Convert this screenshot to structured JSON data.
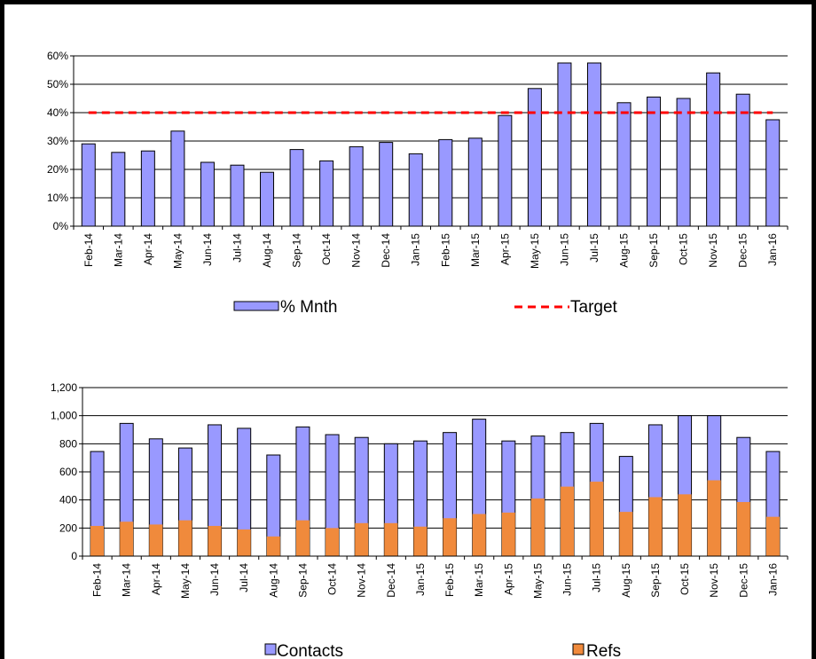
{
  "chart_data": [
    {
      "type": "bar",
      "title": "",
      "xlabel": "",
      "ylabel": "",
      "categories": [
        "Feb-14",
        "Mar-14",
        "Apr-14",
        "May-14",
        "Jun-14",
        "Jul-14",
        "Aug-14",
        "Sep-14",
        "Oct-14",
        "Nov-14",
        "Dec-14",
        "Jan-15",
        "Feb-15",
        "Mar-15",
        "Apr-15",
        "May-15",
        "Jun-15",
        "Jul-15",
        "Aug-15",
        "Sep-15",
        "Oct-15",
        "Nov-15",
        "Dec-15",
        "Jan-16"
      ],
      "yticks": [
        "0%",
        "10%",
        "20%",
        "30%",
        "40%",
        "50%",
        "60%"
      ],
      "ylim": [
        0,
        60
      ],
      "grid": true,
      "legend_position": "bottom",
      "series": [
        {
          "name": "% Mnth",
          "type": "bar",
          "color": "#9999FF",
          "values": [
            29,
            26,
            26.5,
            33.5,
            22.5,
            21.5,
            19,
            27,
            23,
            28,
            29.5,
            25.5,
            30.5,
            31,
            39,
            48.5,
            57.5,
            57.5,
            43.5,
            45.5,
            45,
            54,
            46.5,
            37.5
          ]
        },
        {
          "name": "Target",
          "type": "line",
          "style": "dashed",
          "color": "#FF0000",
          "values": [
            40,
            40,
            40,
            40,
            40,
            40,
            40,
            40,
            40,
            40,
            40,
            40,
            40,
            40,
            40,
            40,
            40,
            40,
            40,
            40,
            40,
            40,
            40,
            40
          ]
        }
      ]
    },
    {
      "type": "bar",
      "stacking": "overlay",
      "title": "",
      "xlabel": "",
      "ylabel": "",
      "categories": [
        "Feb-14",
        "Mar-14",
        "Apr-14",
        "May-14",
        "Jun-14",
        "Jul-14",
        "Aug-14",
        "Sep-14",
        "Oct-14",
        "Nov-14",
        "Dec-14",
        "Jan-15",
        "Feb-15",
        "Mar-15",
        "Apr-15",
        "May-15",
        "Jun-15",
        "Jul-15",
        "Aug-15",
        "Sep-15",
        "Oct-15",
        "Nov-15",
        "Dec-15",
        "Jan-16"
      ],
      "yticks": [
        "0",
        "200",
        "400",
        "600",
        "800",
        "1,000",
        "1,200"
      ],
      "ylim": [
        0,
        1200
      ],
      "grid": true,
      "legend_position": "bottom",
      "series": [
        {
          "name": "Contacts",
          "color": "#9999FF",
          "values": [
            745,
            945,
            835,
            770,
            935,
            910,
            720,
            920,
            865,
            845,
            800,
            820,
            880,
            975,
            820,
            855,
            880,
            945,
            710,
            935,
            1000,
            1000,
            845,
            745
          ]
        },
        {
          "name": "Refs",
          "color": "#F08A3C",
          "values": [
            215,
            245,
            225,
            255,
            215,
            190,
            140,
            255,
            200,
            235,
            235,
            210,
            270,
            300,
            310,
            410,
            495,
            530,
            315,
            420,
            440,
            540,
            385,
            280
          ]
        }
      ]
    }
  ]
}
